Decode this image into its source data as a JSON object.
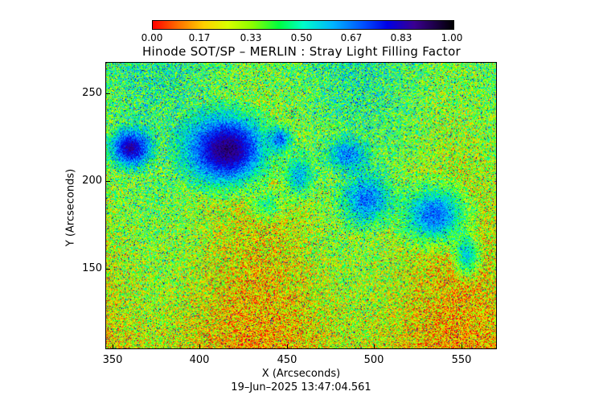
{
  "colorbar": {
    "ticks": [
      "0.00",
      "0.17",
      "0.33",
      "0.50",
      "0.67",
      "0.83",
      "1.00"
    ]
  },
  "title": "Hinode SOT/SP – MERLIN : Stray Light Filling Factor",
  "axes": {
    "xlabel": "X (Arcseconds)",
    "ylabel": "Y (Arcseconds)",
    "xticks": [
      "350",
      "400",
      "450",
      "500",
      "550"
    ],
    "yticks": [
      "250",
      "200",
      "150"
    ]
  },
  "timestamp": "19–Jun–2025 13:47:04.561"
}
